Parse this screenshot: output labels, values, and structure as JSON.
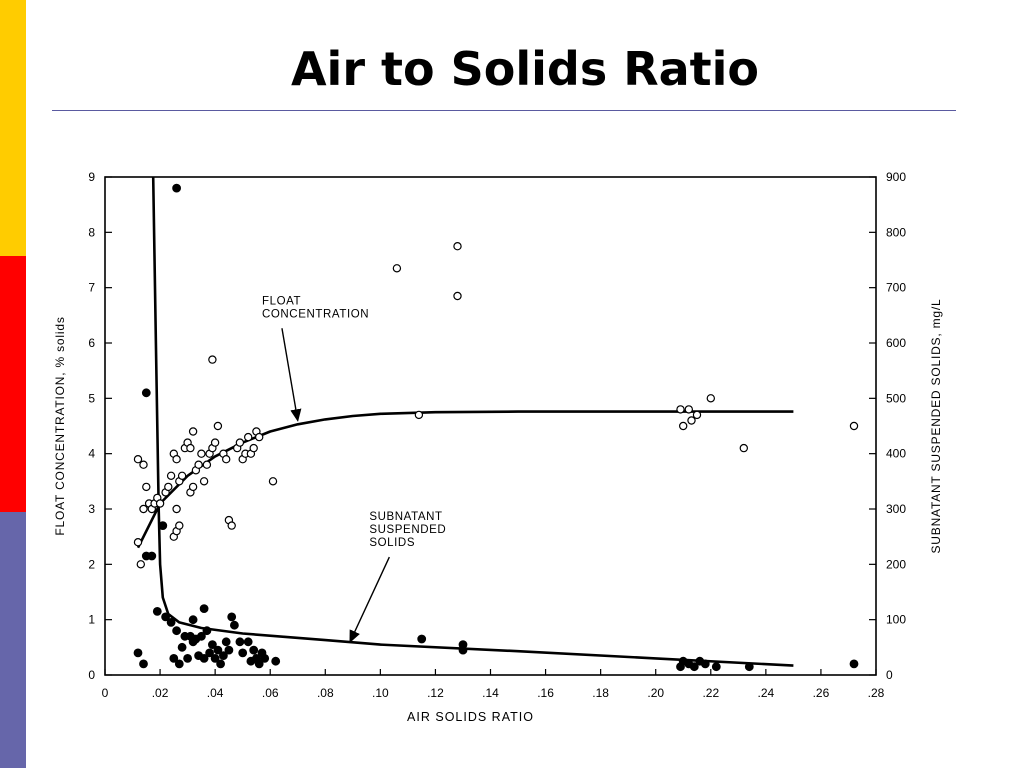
{
  "slide": {
    "title": "Air to Solids Ratio",
    "colors": {
      "bar_top": "#ffcc00",
      "bar_middle": "#ff0000",
      "bar_bottom": "#6666aa",
      "rule": "#5a5aa0"
    }
  },
  "chart_data": {
    "type": "scatter",
    "title": "",
    "xlabel": "AIR SOLIDS RATIO",
    "ylabel_left": "FLOAT CONCENTRATION, % solids",
    "ylabel_right": "SUBNATANT SUSPENDED SOLIDS, mg/L",
    "xlim": [
      0,
      0.28
    ],
    "ylim_left": [
      0,
      9
    ],
    "ylim_right": [
      0,
      900
    ],
    "x_ticks": [
      0,
      0.02,
      0.04,
      0.06,
      0.08,
      0.1,
      0.12,
      0.14,
      0.16,
      0.18,
      0.2,
      0.22,
      0.24,
      0.26,
      0.28
    ],
    "x_tick_labels": [
      "0",
      ".02",
      ".04",
      ".06",
      ".08",
      ".10",
      ".12",
      ".14",
      ".16",
      ".18",
      ".20",
      ".22",
      ".24",
      ".26",
      ".28"
    ],
    "y_left_ticks": [
      0,
      1,
      2,
      3,
      4,
      5,
      6,
      7,
      8,
      9
    ],
    "y_left_tick_labels": [
      "0",
      "1",
      "2",
      "3",
      "4",
      "5",
      "6",
      "7",
      "8",
      "9"
    ],
    "y_right_ticks": [
      0,
      100,
      200,
      300,
      400,
      500,
      600,
      700,
      800,
      900
    ],
    "y_right_tick_labels": [
      "0",
      "100",
      "200",
      "300",
      "400",
      "500",
      "600",
      "700",
      "800",
      "900"
    ],
    "grid": false,
    "annotations": [
      {
        "lines": [
          "FLOAT",
          "CONCENTRATION"
        ],
        "x": 0.057,
        "y": 6.7,
        "arrow_to": [
          0.07,
          4.6
        ]
      },
      {
        "lines": [
          "SUBNATANT",
          "SUSPENDED",
          "SOLIDS"
        ],
        "x": 0.096,
        "y": 2.8,
        "arrow_to": [
          0.089,
          0.6
        ]
      }
    ],
    "series": [
      {
        "marker": "open-circle",
        "axis": "left",
        "points": [
          [
            0.012,
            3.9
          ],
          [
            0.014,
            3.8
          ],
          [
            0.012,
            2.4
          ],
          [
            0.013,
            2.0
          ],
          [
            0.015,
            3.4
          ],
          [
            0.014,
            3.0
          ],
          [
            0.016,
            3.1
          ],
          [
            0.017,
            3.0
          ],
          [
            0.018,
            3.1
          ],
          [
            0.019,
            3.2
          ],
          [
            0.02,
            3.1
          ],
          [
            0.022,
            3.3
          ],
          [
            0.023,
            3.4
          ],
          [
            0.024,
            3.6
          ],
          [
            0.025,
            2.5
          ],
          [
            0.026,
            2.6
          ],
          [
            0.027,
            2.7
          ],
          [
            0.026,
            3.0
          ],
          [
            0.027,
            3.5
          ],
          [
            0.025,
            4.0
          ],
          [
            0.026,
            3.9
          ],
          [
            0.028,
            3.6
          ],
          [
            0.029,
            4.1
          ],
          [
            0.03,
            4.2
          ],
          [
            0.031,
            4.1
          ],
          [
            0.032,
            4.4
          ],
          [
            0.031,
            3.3
          ],
          [
            0.032,
            3.4
          ],
          [
            0.033,
            3.7
          ],
          [
            0.034,
            3.8
          ],
          [
            0.035,
            4.0
          ],
          [
            0.036,
            3.5
          ],
          [
            0.037,
            3.8
          ],
          [
            0.038,
            4.0
          ],
          [
            0.039,
            4.1
          ],
          [
            0.04,
            4.2
          ],
          [
            0.041,
            4.5
          ],
          [
            0.039,
            5.7
          ],
          [
            0.043,
            4.0
          ],
          [
            0.044,
            3.9
          ],
          [
            0.045,
            2.8
          ],
          [
            0.046,
            2.7
          ],
          [
            0.048,
            4.1
          ],
          [
            0.049,
            4.2
          ],
          [
            0.05,
            3.9
          ],
          [
            0.051,
            4.0
          ],
          [
            0.052,
            4.3
          ],
          [
            0.053,
            4.0
          ],
          [
            0.054,
            4.1
          ],
          [
            0.055,
            4.4
          ],
          [
            0.056,
            4.3
          ],
          [
            0.061,
            3.5
          ],
          [
            0.106,
            7.35
          ],
          [
            0.114,
            4.7
          ],
          [
            0.128,
            7.75
          ],
          [
            0.128,
            6.85
          ],
          [
            0.209,
            4.8
          ],
          [
            0.21,
            4.5
          ],
          [
            0.212,
            4.8
          ],
          [
            0.213,
            4.6
          ],
          [
            0.215,
            4.7
          ],
          [
            0.22,
            5.0
          ],
          [
            0.232,
            4.1
          ],
          [
            0.272,
            4.5
          ]
        ]
      },
      {
        "marker": "filled-circle",
        "axis": "right",
        "points": [
          [
            0.012,
            40
          ],
          [
            0.014,
            20
          ],
          [
            0.015,
            510
          ],
          [
            0.015,
            215
          ],
          [
            0.017,
            215
          ],
          [
            0.019,
            115
          ],
          [
            0.021,
            270
          ],
          [
            0.022,
            105
          ],
          [
            0.024,
            95
          ],
          [
            0.026,
            880
          ],
          [
            0.025,
            30
          ],
          [
            0.026,
            80
          ],
          [
            0.027,
            20
          ],
          [
            0.028,
            50
          ],
          [
            0.029,
            70
          ],
          [
            0.03,
            30
          ],
          [
            0.031,
            70
          ],
          [
            0.032,
            60
          ],
          [
            0.032,
            100
          ],
          [
            0.033,
            65
          ],
          [
            0.034,
            35
          ],
          [
            0.035,
            70
          ],
          [
            0.036,
            120
          ],
          [
            0.036,
            30
          ],
          [
            0.037,
            80
          ],
          [
            0.038,
            40
          ],
          [
            0.039,
            55
          ],
          [
            0.04,
            30
          ],
          [
            0.041,
            45
          ],
          [
            0.042,
            20
          ],
          [
            0.043,
            35
          ],
          [
            0.044,
            60
          ],
          [
            0.045,
            45
          ],
          [
            0.046,
            105
          ],
          [
            0.047,
            90
          ],
          [
            0.049,
            60
          ],
          [
            0.05,
            40
          ],
          [
            0.052,
            60
          ],
          [
            0.053,
            25
          ],
          [
            0.054,
            45
          ],
          [
            0.055,
            30
          ],
          [
            0.056,
            20
          ],
          [
            0.057,
            40
          ],
          [
            0.058,
            30
          ],
          [
            0.062,
            25
          ],
          [
            0.115,
            65
          ],
          [
            0.13,
            55
          ],
          [
            0.13,
            45
          ],
          [
            0.209,
            15
          ],
          [
            0.21,
            25
          ],
          [
            0.212,
            20
          ],
          [
            0.214,
            15
          ],
          [
            0.216,
            25
          ],
          [
            0.218,
            20
          ],
          [
            0.222,
            15
          ],
          [
            0.234,
            15
          ],
          [
            0.272,
            20
          ]
        ]
      }
    ],
    "curves": [
      {
        "name": "FLOAT CONCENTRATION",
        "axis": "left",
        "points": [
          [
            0.012,
            2.3
          ],
          [
            0.02,
            3.1
          ],
          [
            0.03,
            3.6
          ],
          [
            0.04,
            3.95
          ],
          [
            0.05,
            4.2
          ],
          [
            0.06,
            4.4
          ],
          [
            0.07,
            4.53
          ],
          [
            0.08,
            4.62
          ],
          [
            0.09,
            4.68
          ],
          [
            0.1,
            4.72
          ],
          [
            0.12,
            4.75
          ],
          [
            0.15,
            4.76
          ],
          [
            0.2,
            4.76
          ],
          [
            0.25,
            4.76
          ]
        ]
      },
      {
        "name": "SUBNATANT SUSPENDED SOLIDS",
        "axis": "right",
        "points": [
          [
            0.0175,
            900
          ],
          [
            0.0185,
            600
          ],
          [
            0.0195,
            300
          ],
          [
            0.02,
            200
          ],
          [
            0.021,
            140
          ],
          [
            0.023,
            110
          ],
          [
            0.027,
            95
          ],
          [
            0.035,
            85
          ],
          [
            0.05,
            75
          ],
          [
            0.08,
            63
          ],
          [
            0.1,
            55
          ],
          [
            0.15,
            43
          ],
          [
            0.2,
            30
          ],
          [
            0.25,
            17
          ]
        ]
      }
    ]
  }
}
